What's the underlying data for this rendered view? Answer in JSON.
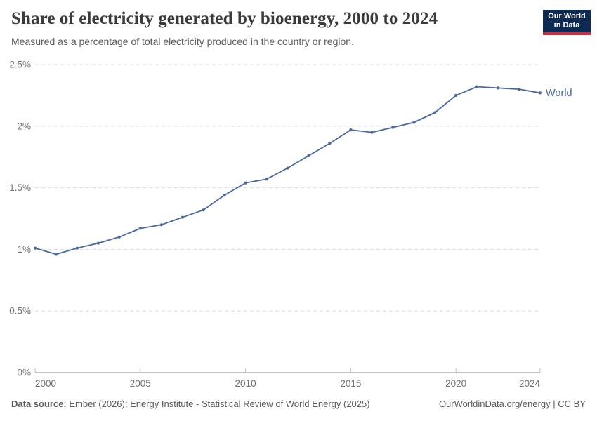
{
  "header": {
    "title": "Share of electricity generated by bioenergy, 2000 to 2024",
    "subtitle": "Measured as a percentage of total electricity produced in the country or region.",
    "logo_line1": "Our World",
    "logo_line2": "in Data"
  },
  "chart_data": {
    "type": "line",
    "title": "Share of electricity generated by bioenergy, 2000 to 2024",
    "xlabel": "",
    "ylabel": "",
    "xlim": [
      2000,
      2024
    ],
    "ylim": [
      0,
      2.5
    ],
    "grid": "horizontal-dashed",
    "legend_position": "end-of-line",
    "x_ticks": [
      2000,
      2005,
      2010,
      2015,
      2020,
      2024
    ],
    "y_ticks": [
      0,
      0.5,
      1,
      1.5,
      2,
      2.5
    ],
    "y_tick_labels": [
      "0%",
      "0.5%",
      "1%",
      "1.5%",
      "2%",
      "2.5%"
    ],
    "series": [
      {
        "name": "World",
        "color": "#4a69a0",
        "x": [
          2000,
          2001,
          2002,
          2003,
          2004,
          2005,
          2006,
          2007,
          2008,
          2009,
          2010,
          2011,
          2012,
          2013,
          2014,
          2015,
          2016,
          2017,
          2018,
          2019,
          2020,
          2021,
          2022,
          2023,
          2024
        ],
        "values": [
          1.01,
          0.96,
          1.01,
          1.05,
          1.1,
          1.17,
          1.2,
          1.26,
          1.32,
          1.44,
          1.54,
          1.57,
          1.66,
          1.76,
          1.86,
          1.97,
          1.95,
          1.99,
          2.03,
          2.11,
          2.25,
          2.32,
          2.31,
          2.3,
          2.27
        ]
      }
    ],
    "end_label": "World"
  },
  "footer": {
    "source_label": "Data source:",
    "source_text": " Ember (2026); Energy Institute - Statistical Review of World Energy (2025)",
    "credit": "OurWorldinData.org/energy | CC BY"
  },
  "colors": {
    "series_blue": "#4a69a0",
    "logo_navy": "#0d2b52",
    "logo_red": "#cf2e41",
    "gridline": "#dcdcdc",
    "axis": "#8f8f8f",
    "tick_text": "#6e6e6e"
  }
}
